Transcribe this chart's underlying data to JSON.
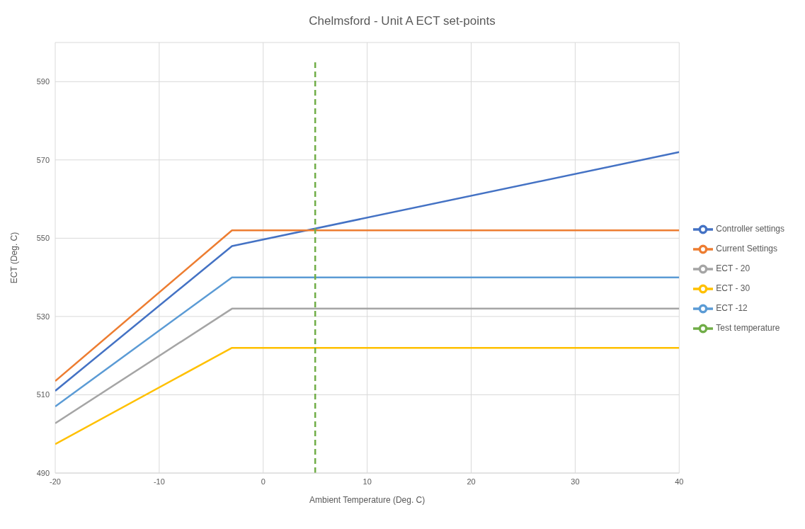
{
  "chart_data": {
    "type": "line",
    "title": "Chelmsford - Unit A ECT set-points",
    "xlabel": "Ambient Temperature (Deg. C)",
    "ylabel": "ECT (Deg. C)",
    "xlim": [
      -20,
      40
    ],
    "xticks": [
      -20,
      -10,
      0,
      10,
      20,
      30,
      40
    ],
    "ylim": [
      490,
      600
    ],
    "yticks": [
      490,
      510,
      530,
      550,
      570,
      590
    ],
    "grid": true,
    "legend": "right",
    "marker": "none",
    "series": [
      {
        "name": "Controller settings",
        "color": "#4472c4",
        "x": [
          -20,
          -3,
          40
        ],
        "values": [
          511,
          548,
          572
        ]
      },
      {
        "name": "Current Settings",
        "color": "#ed7d31",
        "x": [
          -20,
          -3,
          40
        ],
        "values": [
          513.5,
          552,
          552
        ]
      },
      {
        "name": "ECT - 20",
        "color": "#a5a5a5",
        "x": [
          -20,
          -3,
          40
        ],
        "values": [
          502.7,
          532,
          532
        ]
      },
      {
        "name": "ECT - 30",
        "color": "#ffc000",
        "x": [
          -20,
          -3,
          40
        ],
        "values": [
          497.4,
          522,
          522
        ]
      },
      {
        "name": "ECT -12",
        "color": "#5b9bd5",
        "x": [
          -20,
          -3,
          40
        ],
        "values": [
          507,
          540,
          540
        ]
      },
      {
        "name": "Test temperature",
        "color": "#70ad47",
        "line_style": "dashed",
        "x": [
          5,
          5
        ],
        "values": [
          490,
          595
        ]
      }
    ]
  }
}
